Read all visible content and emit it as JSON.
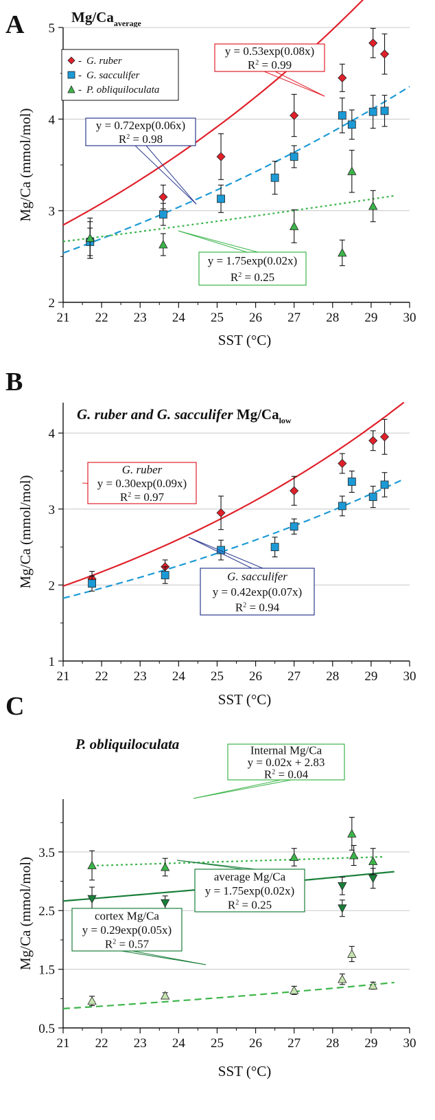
{
  "figure": {
    "panels": [
      {
        "letter": "A",
        "title_html": "<tspan font-weight='bold'>Mg/Ca</tspan><tspan font-weight='bold' font-size='12' dy='6'>average</tspan>"
      },
      {
        "letter": "B",
        "title_html": "<tspan font-weight='bold' font-style='italic'>G. ruber and G. sacculifer </tspan><tspan font-weight='bold'>Mg/Ca</tspan><tspan font-weight='bold' font-size='12' dy='6'>low</tspan>"
      },
      {
        "letter": "C",
        "title_html": "<tspan font-weight='bold' font-style='italic'>P. obliquiloculata</tspan>"
      }
    ]
  },
  "colors": {
    "red": "#e0202a",
    "blue": "#1c9ad6",
    "green_light": "#3cb54a",
    "green_dark": "#1a7f3a",
    "green_pale": "#c6e3b0",
    "box_blue": "#2b3a8f",
    "grid": "#c8c8c8"
  },
  "chart_data": [
    {
      "type": "scatter",
      "panel": "A",
      "title": "Mg/Caaverage",
      "xlabel": "SST (°C)",
      "ylabel": "Mg/Ca (mmol/mol)",
      "xlim": [
        21,
        30
      ],
      "ylim": [
        2,
        5
      ],
      "xticks": [
        21,
        22,
        23,
        24,
        25,
        26,
        27,
        28,
        29,
        30
      ],
      "yticks": [
        2,
        3,
        4,
        5
      ],
      "grid": true,
      "legend": {
        "position": "top-left",
        "entries": [
          {
            "marker": "diamond",
            "color": "#e0202a",
            "label": "G. ruber"
          },
          {
            "marker": "square",
            "color": "#1c9ad6",
            "label": "G. sacculifer"
          },
          {
            "marker": "triangle",
            "color": "#3cb54a",
            "label": "P. obliquiloculata"
          }
        ]
      },
      "series": [
        {
          "name": "G. ruber",
          "marker": "diamond",
          "color": "#e0202a",
          "x": [
            21.7,
            23.6,
            25.1,
            27.0,
            28.25,
            29.05,
            29.35
          ],
          "y": [
            2.68,
            3.15,
            3.59,
            4.04,
            4.45,
            4.83,
            4.71
          ],
          "err": [
            0.2,
            0.13,
            0.25,
            0.23,
            0.15,
            0.16,
            0.22
          ]
        },
        {
          "name": "G. sacculifer",
          "marker": "square",
          "color": "#1c9ad6",
          "x": [
            21.7,
            23.6,
            25.1,
            26.5,
            27.0,
            28.25,
            28.5,
            29.05,
            29.35
          ],
          "y": [
            2.66,
            2.96,
            3.13,
            3.36,
            3.59,
            4.04,
            3.94,
            4.08,
            4.09
          ],
          "err": [
            0.15,
            0.12,
            0.15,
            0.18,
            0.12,
            0.19,
            0.16,
            0.18,
            0.17
          ]
        },
        {
          "name": "P. obliquiloculata",
          "marker": "triangle",
          "color": "#3cb54a",
          "x": [
            21.7,
            23.6,
            27.0,
            28.25,
            28.5,
            29.05
          ],
          "y": [
            2.7,
            2.63,
            2.83,
            2.54,
            3.43,
            3.05
          ],
          "err": [
            0.22,
            0.12,
            0.18,
            0.14,
            0.23,
            0.17
          ]
        }
      ],
      "fits": [
        {
          "color": "#e0202a",
          "dash": "solid",
          "a": 0.53,
          "b": 0.08,
          "x0": 21,
          "x1": 30
        },
        {
          "color": "#1c9ad6",
          "dash": "long",
          "a": 0.72,
          "b": 0.06,
          "x0": 21,
          "x1": 30
        },
        {
          "color": "#3cb54a",
          "dash": "short",
          "a": 1.75,
          "b": 0.02,
          "x0": 21,
          "x1": 29.6
        }
      ],
      "annotations": [
        {
          "border": "#e0202a",
          "lines": [
            "y = 0.53exp(0.08x)",
            "R2 = 0.99"
          ]
        },
        {
          "border": "#2b3a8f",
          "lines": [
            "y = 0.72exp(0.06x)",
            "R2 = 0.98"
          ]
        },
        {
          "border": "#3cb54a",
          "lines": [
            "y = 1.75exp(0.02x)",
            "R2 = 0.25"
          ]
        }
      ]
    },
    {
      "type": "scatter",
      "panel": "B",
      "title": "G. ruber and G. sacculifer Mg/Calow",
      "xlabel": "SST (°C)",
      "ylabel": "Mg/Ca  (mmol/mol)",
      "xlim": [
        21,
        30
      ],
      "ylim": [
        1,
        4.4
      ],
      "xticks": [
        21,
        22,
        23,
        24,
        25,
        26,
        27,
        28,
        29,
        30
      ],
      "yticks": [
        1,
        2,
        3,
        4
      ],
      "grid": true,
      "series": [
        {
          "name": "G. ruber",
          "marker": "diamond",
          "color": "#e0202a",
          "x": [
            21.75,
            23.65,
            25.1,
            27.0,
            28.25,
            29.05,
            29.35
          ],
          "y": [
            2.08,
            2.24,
            2.95,
            3.24,
            3.6,
            3.9,
            3.95
          ],
          "err": [
            0.1,
            0.09,
            0.22,
            0.19,
            0.13,
            0.13,
            0.23
          ]
        },
        {
          "name": "G. sacculifer",
          "marker": "square",
          "color": "#1c9ad6",
          "x": [
            21.75,
            23.65,
            25.1,
            26.5,
            27.0,
            28.25,
            28.5,
            29.05,
            29.35
          ],
          "y": [
            2.02,
            2.13,
            2.46,
            2.5,
            2.77,
            3.04,
            3.36,
            3.16,
            3.32
          ],
          "err": [
            0.1,
            0.11,
            0.13,
            0.13,
            0.1,
            0.13,
            0.14,
            0.14,
            0.16
          ]
        }
      ],
      "fits": [
        {
          "color": "#e0202a",
          "dash": "solid",
          "a": 0.3,
          "b": 0.09,
          "x0": 21,
          "x1": 29.85
        },
        {
          "color": "#1c9ad6",
          "dash": "long",
          "a": 0.42,
          "b": 0.07,
          "x0": 21,
          "x1": 29.85
        }
      ],
      "annotations": [
        {
          "border": "#e0202a",
          "lines": [
            "G. ruber",
            "y = 0.30exp(0.09x)",
            "R2 = 0.97"
          ]
        },
        {
          "border": "#2b3a8f",
          "lines": [
            "G. sacculifer",
            "y = 0.42exp(0.07x)",
            "R2 = 0.94"
          ]
        }
      ]
    },
    {
      "type": "scatter",
      "panel": "C",
      "title": "P. obliquiloculata",
      "xlabel": "SST (°C)",
      "ylabel": "Mg/Ca  (mmol/mol)",
      "xlim": [
        21,
        30
      ],
      "ylim": [
        0.5,
        4.4
      ],
      "xticks": [
        21,
        22,
        23,
        24,
        25,
        26,
        27,
        28,
        29,
        30
      ],
      "yticks": [
        0.5,
        1.5,
        2.5,
        3.5
      ],
      "grid": true,
      "series": [
        {
          "name": "Internal Mg/Ca",
          "marker": "triangle",
          "color": "#3cb54a",
          "x": [
            21.75,
            23.65,
            27.0,
            28.5,
            28.55,
            29.05
          ],
          "y": [
            3.27,
            3.24,
            3.41,
            3.81,
            3.44,
            3.34
          ],
          "err": [
            0.25,
            0.15,
            0.15,
            0.28,
            0.17,
            0.22
          ]
        },
        {
          "name": "average Mg/Ca",
          "marker": "triangle-down",
          "color": "#1a7f3a",
          "x": [
            21.75,
            23.65,
            27.0,
            28.25,
            28.25,
            29.05
          ],
          "y": [
            2.7,
            2.63,
            2.83,
            2.92,
            2.54,
            3.05
          ],
          "err": [
            0.2,
            0.12,
            0.18,
            0.15,
            0.14,
            0.17
          ]
        },
        {
          "name": "cortex Mg/Ca",
          "marker": "triangle",
          "color": "#c6e3b0",
          "x": [
            21.75,
            23.65,
            27.0,
            28.25,
            28.5,
            29.05
          ],
          "y": [
            0.96,
            1.05,
            1.14,
            1.33,
            1.76,
            1.22
          ],
          "err": [
            0.08,
            0.05,
            0.07,
            0.09,
            0.13,
            0.06
          ]
        }
      ],
      "fits": [
        {
          "color": "#3cb54a",
          "dash": "short",
          "kind": "linear",
          "m": 0.02,
          "c": 2.83,
          "x0": 21.75,
          "x1": 29.3
        },
        {
          "color": "#1a7f3a",
          "dash": "solid",
          "a": 1.75,
          "b": 0.02,
          "x0": 21,
          "x1": 29.6
        },
        {
          "color": "#3cb54a",
          "dash": "long",
          "a": 0.29,
          "b": 0.05,
          "x0": 21,
          "x1": 29.6
        }
      ],
      "annotations": [
        {
          "border": "#3cb54a",
          "lines": [
            "Internal Mg/Ca",
            "y = 0.02x + 2.83",
            "R2 = 0.04"
          ]
        },
        {
          "border": "#1a7f3a",
          "lines": [
            "average Mg/Ca",
            "y = 1.75exp(0.02x)",
            "R2 = 0.25"
          ]
        },
        {
          "border": "#1a7f3a",
          "lines": [
            "cortex Mg/Ca",
            "y = 0.29exp(0.05x)",
            "R2 = 0.57"
          ]
        }
      ]
    }
  ]
}
